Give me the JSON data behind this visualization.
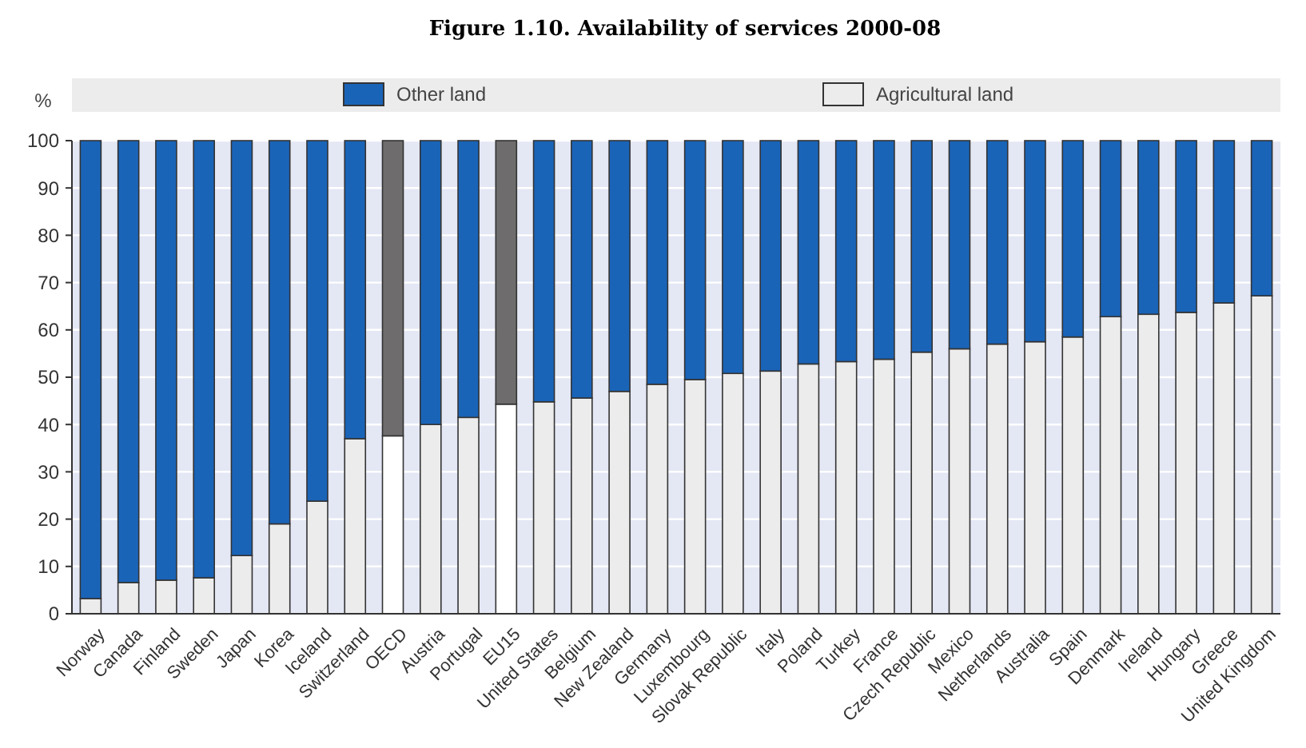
{
  "chart_data": {
    "type": "bar",
    "title": "Figure 1.10. Availability of services 2000-08",
    "ylabel": "%",
    "stacked": true,
    "categories": [
      "Norway",
      "Canada",
      "Finland",
      "Sweden",
      "Japan",
      "Korea",
      "Iceland",
      "Switzerland",
      "OECD",
      "Austria",
      "Portugal",
      "EU15",
      "United States",
      "Belgium",
      "New Zealand",
      "Germany",
      "Luxembourg",
      "Slovak Republic",
      "Italy",
      "Poland",
      "Turkey",
      "France",
      "Czech Republic",
      "Mexico",
      "Netherlands",
      "Australia",
      "Spain",
      "Denmark",
      "Ireland",
      "Hungary",
      "Greece",
      "United Kingdom"
    ],
    "series": [
      {
        "name": "Agricultural land",
        "color": "#ececec",
        "colors": [
          "#ececec",
          "#ececec",
          "#ececec",
          "#ececec",
          "#ececec",
          "#ececec",
          "#ececec",
          "#ececec",
          "#ffffff",
          "#ececec",
          "#ececec",
          "#ffffff",
          "#ececec",
          "#ececec",
          "#ececec",
          "#ececec",
          "#ececec",
          "#ececec",
          "#ececec",
          "#ececec",
          "#ececec",
          "#ececec",
          "#ececec",
          "#ececec",
          "#ececec",
          "#ececec",
          "#ececec",
          "#ececec",
          "#ececec",
          "#ececec",
          "#ececec",
          "#ececec"
        ],
        "values": [
          3.2,
          6.6,
          7.1,
          7.6,
          12.3,
          19,
          23.8,
          37,
          37.6,
          40,
          41.5,
          44.3,
          44.8,
          45.6,
          47,
          48.5,
          49.5,
          50.8,
          51.3,
          52.8,
          53.3,
          53.8,
          55.3,
          56,
          57,
          57.5,
          58.5,
          62.8,
          63.3,
          63.7,
          65.7,
          67.2
        ]
      },
      {
        "name": "Other land",
        "color": "#1a64b8",
        "colors": [
          "#1a64b8",
          "#1a64b8",
          "#1a64b8",
          "#1a64b8",
          "#1a64b8",
          "#1a64b8",
          "#1a64b8",
          "#1a64b8",
          "#6e6c6c",
          "#1a64b8",
          "#1a64b8",
          "#6e6c6c",
          "#1a64b8",
          "#1a64b8",
          "#1a64b8",
          "#1a64b8",
          "#1a64b8",
          "#1a64b8",
          "#1a64b8",
          "#1a64b8",
          "#1a64b8",
          "#1a64b8",
          "#1a64b8",
          "#1a64b8",
          "#1a64b8",
          "#1a64b8",
          "#1a64b8",
          "#1a64b8",
          "#1a64b8",
          "#1a64b8",
          "#1a64b8",
          "#1a64b8"
        ],
        "values": [
          96.8,
          93.4,
          92.9,
          92.4,
          87.7,
          81,
          76.2,
          63,
          62.4,
          60,
          58.5,
          55.7,
          55.2,
          54.4,
          53,
          51.5,
          50.5,
          49.2,
          48.7,
          47.2,
          46.7,
          46.2,
          44.7,
          44,
          43,
          42.5,
          41.5,
          37.2,
          36.7,
          36.3,
          34.3,
          32.8
        ]
      }
    ],
    "ylim": [
      0,
      100
    ],
    "yticks": [
      0,
      10,
      20,
      30,
      40,
      50,
      60,
      70,
      80,
      90,
      100
    ],
    "grid": "y",
    "legend": "top"
  }
}
